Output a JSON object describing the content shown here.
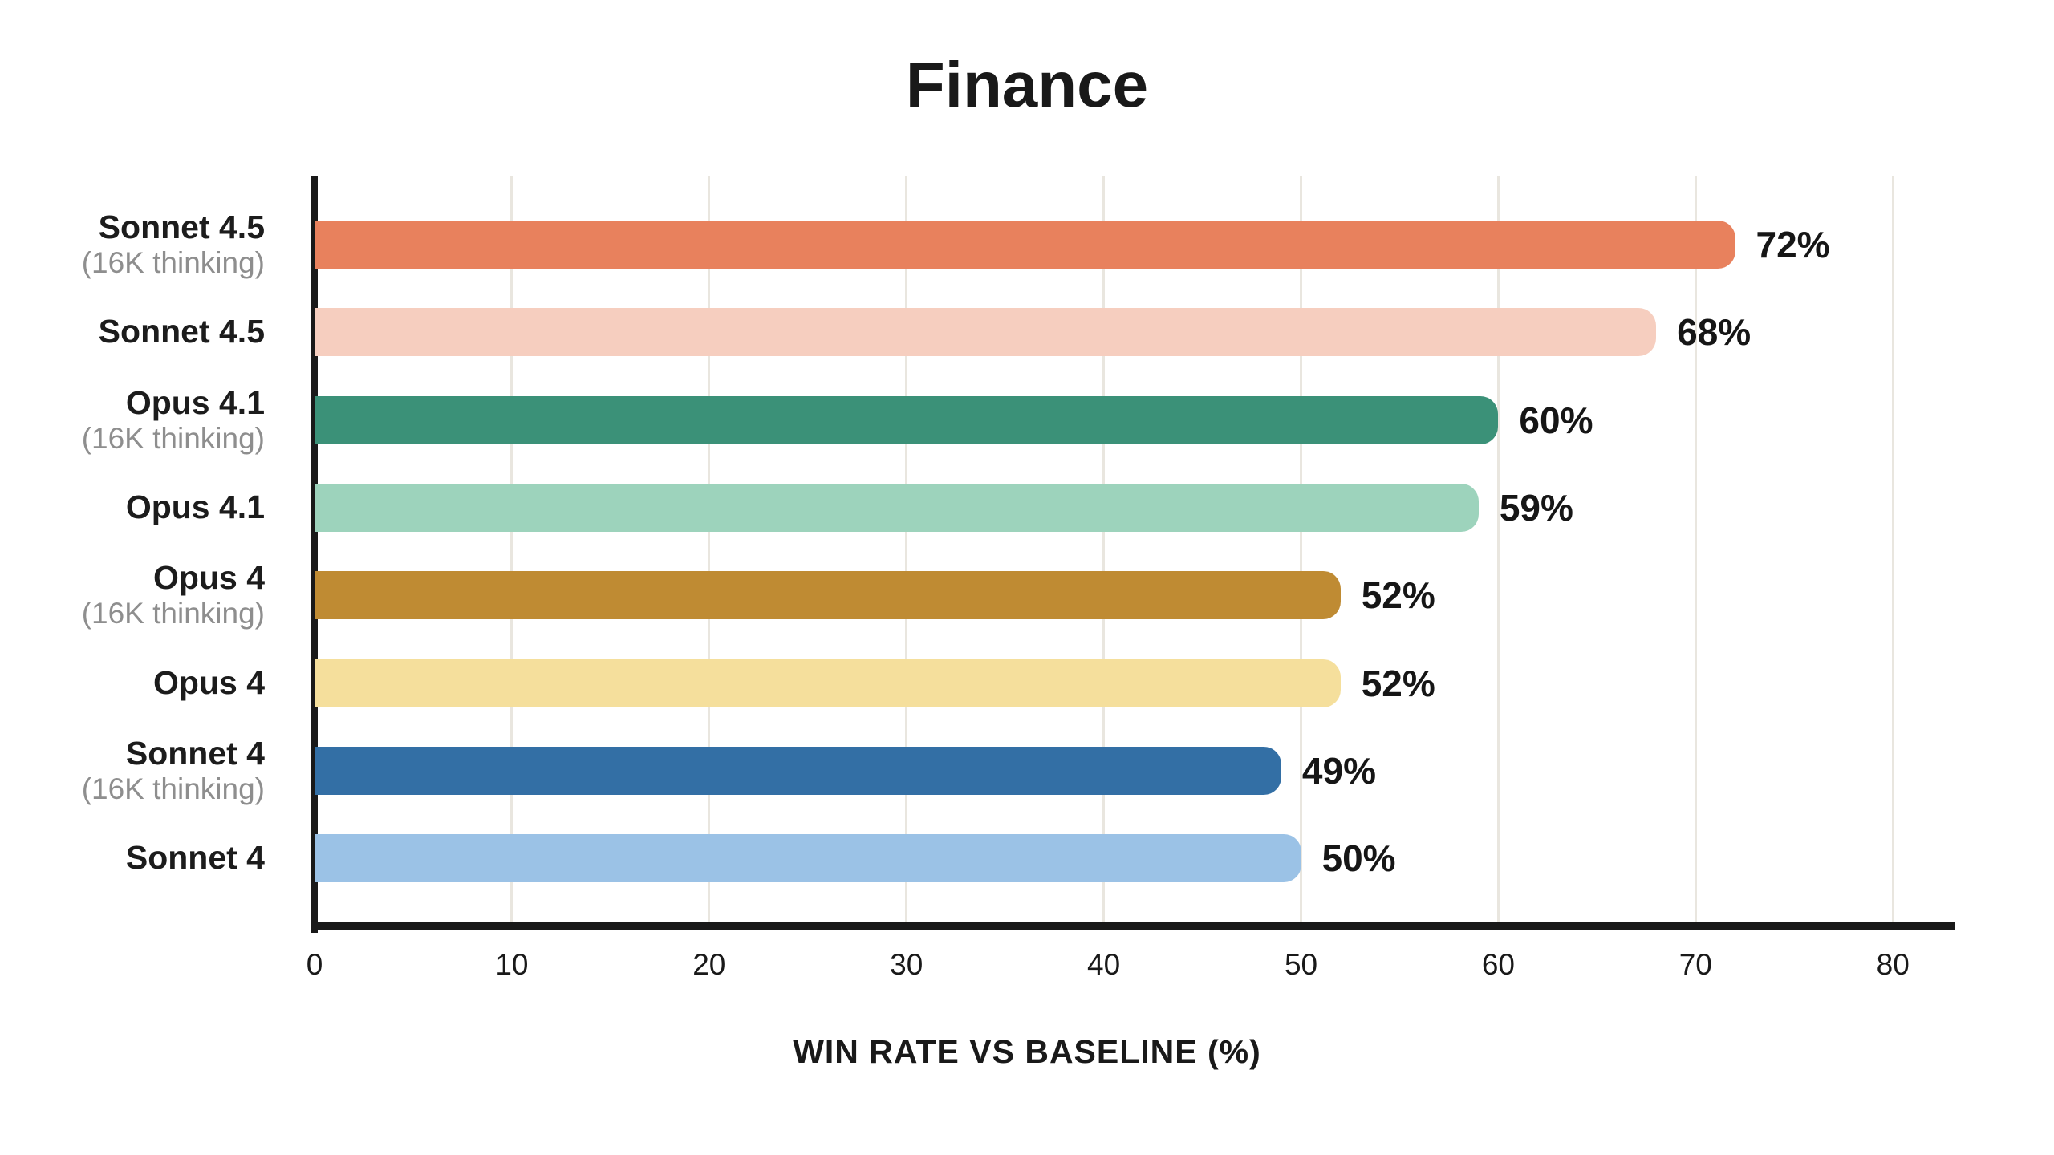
{
  "title": "Finance",
  "chart_data": {
    "type": "bar",
    "orientation": "horizontal",
    "title": "Finance",
    "xlabel": "WIN RATE VS BASELINE (%)",
    "xlim": [
      0,
      80
    ],
    "xticks": [
      0,
      10,
      20,
      30,
      40,
      50,
      60,
      70,
      80
    ],
    "grid": true,
    "legend": "none",
    "categories": [
      "Sonnet 4.5 (16K thinking)",
      "Sonnet 4.5",
      "Opus 4.1 (16K thinking)",
      "Opus 4.1",
      "Opus 4 (16K thinking)",
      "Opus 4",
      "Sonnet 4 (16K thinking)",
      "Sonnet 4"
    ],
    "values": [
      72,
      68,
      60,
      59,
      52,
      52,
      49,
      50
    ],
    "bars": [
      {
        "label": "Sonnet 4.5",
        "sublabel": "(16K thinking)",
        "value": 72,
        "value_label": "72%",
        "color": "#E8815D"
      },
      {
        "label": "Sonnet 4.5",
        "sublabel": "",
        "value": 68,
        "value_label": "68%",
        "color": "#F6CEBF"
      },
      {
        "label": "Opus 4.1",
        "sublabel": "(16K thinking)",
        "value": 60,
        "value_label": "60%",
        "color": "#3B9178"
      },
      {
        "label": "Opus 4.1",
        "sublabel": "",
        "value": 59,
        "value_label": "59%",
        "color": "#9DD3BC"
      },
      {
        "label": "Opus 4",
        "sublabel": "(16K thinking)",
        "value": 52,
        "value_label": "52%",
        "color": "#BF8B33"
      },
      {
        "label": "Opus 4",
        "sublabel": "",
        "value": 52,
        "value_label": "52%",
        "color": "#F5DF9C"
      },
      {
        "label": "Sonnet 4",
        "sublabel": "(16K thinking)",
        "value": 49,
        "value_label": "49%",
        "color": "#336FA5"
      },
      {
        "label": "Sonnet 4",
        "sublabel": "",
        "value": 50,
        "value_label": "50%",
        "color": "#9BC2E6"
      }
    ],
    "colors": {
      "background": "#FFFFFF",
      "grid": "#E9E6DF",
      "axis": "#191919",
      "text": "#1A1A1A",
      "muted_text": "#8E8E8E"
    }
  }
}
